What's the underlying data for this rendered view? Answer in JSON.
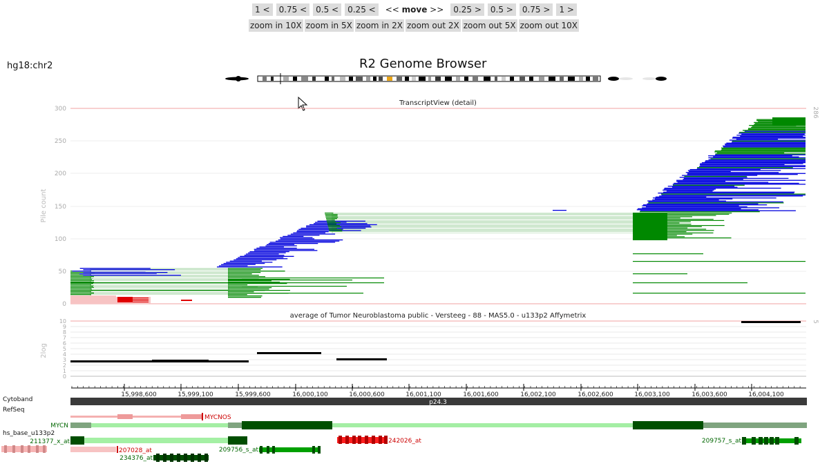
{
  "nav": {
    "left": [
      "1 <",
      "0.75 <",
      "0.5 <",
      "0.25 <"
    ],
    "move_pre": "<< ",
    "move_word": "move",
    "move_post": " >>",
    "right": [
      "0.25 >",
      "0.5 >",
      "0.75 >",
      "1 >"
    ],
    "zoom": [
      "zoom in 10X",
      "zoom in 5X",
      "zoom in 2X",
      "zoom out 2X",
      "zoom out 5X",
      "zoom out 10X"
    ]
  },
  "genome": "hg18:chr2",
  "title": "R2 Genome Browser",
  "transcript": {
    "title": "TranscriptView (detail)",
    "ylabel": "Pile count",
    "yticks": [
      "0",
      "50",
      "100",
      "150",
      "200",
      "250",
      "300"
    ],
    "right_label": "286"
  },
  "expr": {
    "title": "average of Tumor Neuroblastoma public - Versteeg - 88 - MAS5.0 - u133p2 Affymetrix",
    "ylabel": "2log",
    "yticks": [
      "0",
      "1",
      "2",
      "3",
      "4",
      "5",
      "6",
      "7",
      "8",
      "9",
      "10"
    ],
    "right_label": "5"
  },
  "axis": {
    "labels": [
      "15,998,600",
      "15,999,100",
      "15,999,600",
      "16,000,100",
      "16,000,600",
      "16,001,100",
      "16,001,600",
      "16,002,100",
      "16,002,600",
      "16,003,100",
      "16,003,600",
      "16,004,100"
    ]
  },
  "tracks": {
    "cytoband": "Cytoband",
    "cytoband_label": "p24.3",
    "refseq": "RefSeq",
    "mycnos": "MYCNOS",
    "mycn": "MYCN",
    "hs_base": "hs_base_u133p2",
    "probes": [
      "211377_x_at",
      "242026_at",
      "209757_s_at",
      "207028_at",
      "209756_s_at",
      "234376_at"
    ]
  },
  "colors": {
    "forward": "#0000dd",
    "reverse": "#008800",
    "light_green": "#cfe8cf",
    "pink": "#f7c3c3",
    "red": "#e00000",
    "dark_green": "#004d00",
    "mid_green": "#00a000"
  }
}
